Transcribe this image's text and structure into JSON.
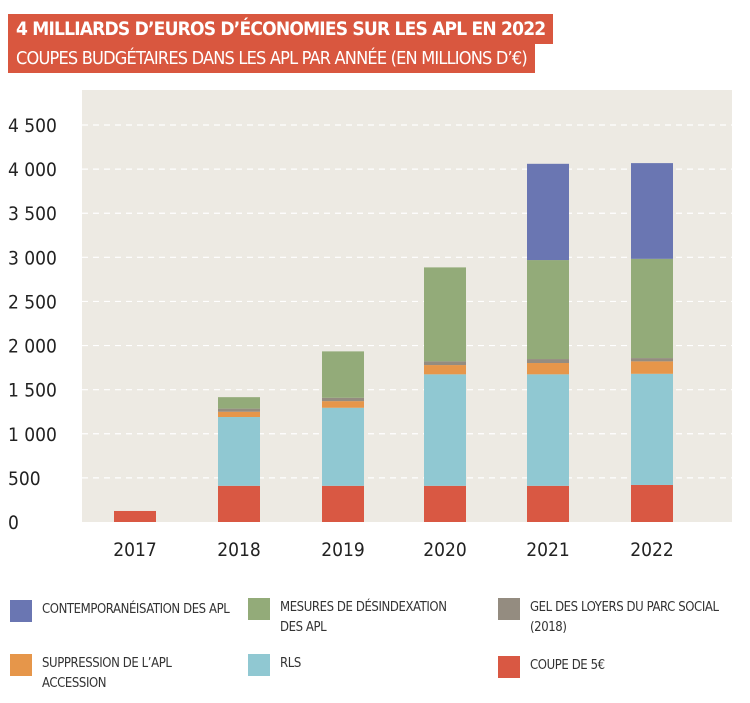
{
  "title": "4 MILLIARDS D’EUROS D’ÉCONOMIES SUR LES APL EN 2022",
  "subtitle": "COUPES BUDGÉTAIRES DANS LES APL PAR ANNÉE (EN MILLIONS D’€)",
  "chart_data": {
    "type": "bar",
    "stacked": true,
    "title": "4 MILLIARDS D’EUROS D’ÉCONOMIES SUR LES APL EN 2022",
    "subtitle": "COUPES BUDGÉTAIRES DANS LES APL PAR ANNÉE (EN MILLIONS D’€)",
    "categories": [
      "2017",
      "2018",
      "2019",
      "2020",
      "2021",
      "2022"
    ],
    "ylim": [
      0,
      4500
    ],
    "yticks": [
      0,
      500,
      1000,
      1500,
      2000,
      2500,
      3000,
      3500,
      4000,
      4500
    ],
    "ytick_labels": [
      "0",
      "500",
      "1 000",
      "1 500",
      "2 000",
      "2 500",
      "3 000",
      "3 500",
      "4 000",
      "4 500"
    ],
    "grid": true,
    "legend_position": "bottom",
    "series": [
      {
        "name": "COUPE DE 5€",
        "color": "#d95843",
        "values": [
          125,
          410,
          410,
          410,
          410,
          420
        ]
      },
      {
        "name": "RLS",
        "color": "#90c8d2",
        "values": [
          0,
          780,
          885,
          1264,
          1264,
          1260
        ]
      },
      {
        "name": "SUPPRESSION DE L’APL ACCESSION",
        "color": "#e6964a",
        "values": [
          0,
          60,
          75,
          105,
          128,
          141
        ]
      },
      {
        "name": "GEL DES LOYERS DU PARC SOCIAL  (2018)",
        "color": "#948c80",
        "values": [
          0,
          35,
          38,
          42,
          45,
          37
        ]
      },
      {
        "name": "MESURES DE DÉSINDEXATION DES APL",
        "color": "#93ab79",
        "values": [
          0,
          130,
          526,
          1065,
          1122,
          1125
        ]
      },
      {
        "name": "CONTEMPORANÉISATION DES APL",
        "color": "#6a76b2",
        "values": [
          0,
          0,
          0,
          0,
          1091,
          1085
        ]
      }
    ]
  },
  "legend": [
    {
      "label": "CONTEMPORANÉISATION DES APL",
      "color": "#6a76b2"
    },
    {
      "label": "MESURES DE DÉSINDEXATION DES APL",
      "color": "#93ab79"
    },
    {
      "label": "GEL DES LOYERS DU PARC SOCIAL  (2018)",
      "color": "#948c80"
    },
    {
      "label": "SUPPRESSION DE L’APL ACCESSION",
      "color": "#e6964a"
    },
    {
      "label": "RLS",
      "color": "#90c8d2"
    },
    {
      "label": "COUPE DE 5€",
      "color": "#d95843"
    }
  ]
}
